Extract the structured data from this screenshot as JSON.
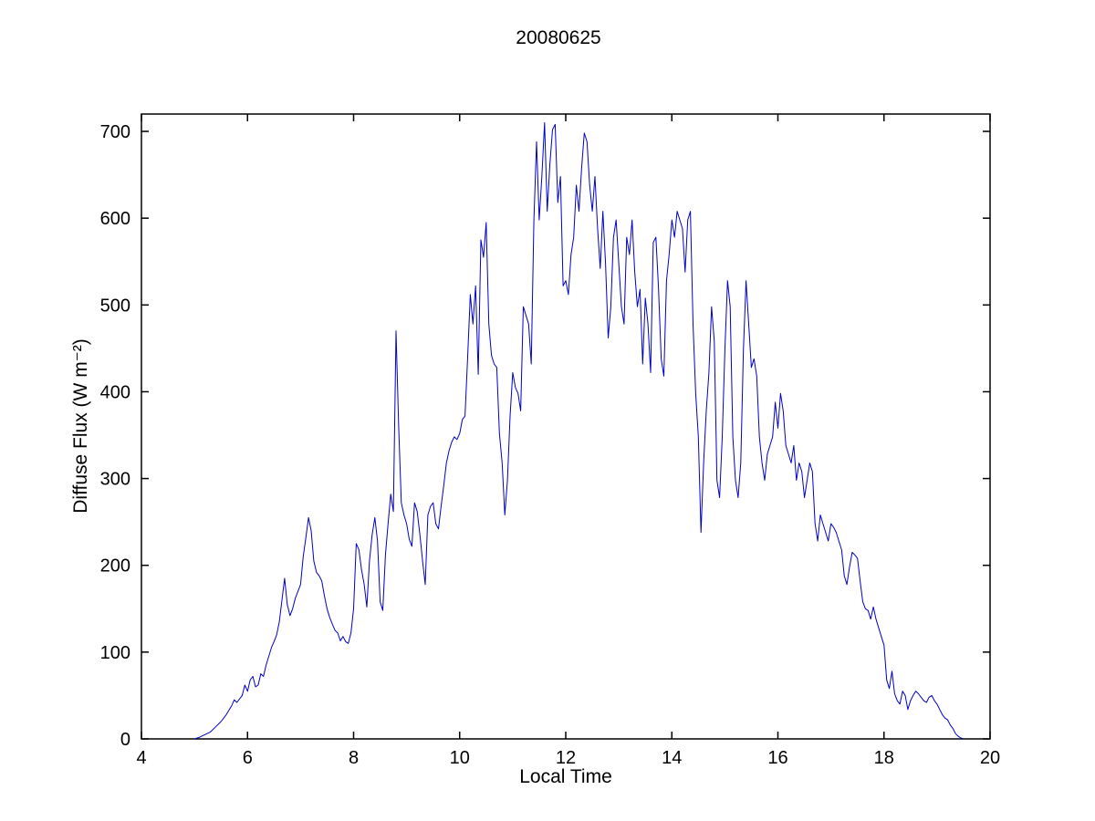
{
  "figure": {
    "background": "#ffffff"
  },
  "chart_data": {
    "type": "line",
    "title": "20080625",
    "xlabel": "Local Time",
    "ylabel": "Diffuse Flux (W m⁻²)",
    "xlim": [
      4,
      20
    ],
    "ylim": [
      0,
      720
    ],
    "xticks": [
      4,
      6,
      8,
      10,
      12,
      14,
      16,
      18,
      20
    ],
    "yticks": [
      0,
      100,
      200,
      300,
      400,
      500,
      600,
      700
    ],
    "grid": false,
    "legend": "none",
    "line_color": "#0000CC",
    "axis_color": "#000000",
    "points": [
      [
        5.0,
        0
      ],
      [
        5.1,
        2
      ],
      [
        5.2,
        5
      ],
      [
        5.3,
        8
      ],
      [
        5.4,
        14
      ],
      [
        5.5,
        20
      ],
      [
        5.6,
        28
      ],
      [
        5.7,
        38
      ],
      [
        5.75,
        45
      ],
      [
        5.8,
        42
      ],
      [
        5.9,
        50
      ],
      [
        5.95,
        62
      ],
      [
        6.0,
        55
      ],
      [
        6.05,
        68
      ],
      [
        6.1,
        72
      ],
      [
        6.15,
        60
      ],
      [
        6.2,
        62
      ],
      [
        6.25,
        75
      ],
      [
        6.3,
        72
      ],
      [
        6.35,
        85
      ],
      [
        6.4,
        95
      ],
      [
        6.45,
        105
      ],
      [
        6.5,
        112
      ],
      [
        6.55,
        120
      ],
      [
        6.6,
        135
      ],
      [
        6.65,
        160
      ],
      [
        6.7,
        185
      ],
      [
        6.75,
        155
      ],
      [
        6.8,
        142
      ],
      [
        6.85,
        150
      ],
      [
        6.9,
        162
      ],
      [
        6.95,
        170
      ],
      [
        7.0,
        178
      ],
      [
        7.05,
        210
      ],
      [
        7.1,
        232
      ],
      [
        7.15,
        255
      ],
      [
        7.2,
        240
      ],
      [
        7.25,
        205
      ],
      [
        7.3,
        192
      ],
      [
        7.35,
        188
      ],
      [
        7.4,
        182
      ],
      [
        7.45,
        165
      ],
      [
        7.5,
        150
      ],
      [
        7.55,
        140
      ],
      [
        7.6,
        132
      ],
      [
        7.65,
        125
      ],
      [
        7.7,
        122
      ],
      [
        7.75,
        113
      ],
      [
        7.8,
        118
      ],
      [
        7.85,
        112
      ],
      [
        7.9,
        110
      ],
      [
        7.95,
        122
      ],
      [
        8.0,
        150
      ],
      [
        8.05,
        225
      ],
      [
        8.1,
        218
      ],
      [
        8.15,
        195
      ],
      [
        8.2,
        178
      ],
      [
        8.25,
        152
      ],
      [
        8.3,
        205
      ],
      [
        8.35,
        235
      ],
      [
        8.4,
        255
      ],
      [
        8.45,
        228
      ],
      [
        8.5,
        158
      ],
      [
        8.55,
        148
      ],
      [
        8.6,
        212
      ],
      [
        8.65,
        248
      ],
      [
        8.7,
        282
      ],
      [
        8.75,
        262
      ],
      [
        8.8,
        470
      ],
      [
        8.85,
        360
      ],
      [
        8.9,
        272
      ],
      [
        8.95,
        258
      ],
      [
        9.0,
        248
      ],
      [
        9.05,
        230
      ],
      [
        9.1,
        222
      ],
      [
        9.15,
        272
      ],
      [
        9.2,
        262
      ],
      [
        9.25,
        235
      ],
      [
        9.3,
        205
      ],
      [
        9.35,
        178
      ],
      [
        9.4,
        258
      ],
      [
        9.45,
        268
      ],
      [
        9.5,
        272
      ],
      [
        9.55,
        248
      ],
      [
        9.6,
        242
      ],
      [
        9.65,
        268
      ],
      [
        9.7,
        292
      ],
      [
        9.75,
        318
      ],
      [
        9.8,
        332
      ],
      [
        9.85,
        342
      ],
      [
        9.9,
        348
      ],
      [
        9.95,
        345
      ],
      [
        10.0,
        352
      ],
      [
        10.05,
        368
      ],
      [
        10.1,
        372
      ],
      [
        10.15,
        440
      ],
      [
        10.2,
        512
      ],
      [
        10.25,
        478
      ],
      [
        10.3,
        522
      ],
      [
        10.35,
        420
      ],
      [
        10.4,
        575
      ],
      [
        10.45,
        555
      ],
      [
        10.5,
        595
      ],
      [
        10.55,
        478
      ],
      [
        10.6,
        442
      ],
      [
        10.65,
        432
      ],
      [
        10.7,
        428
      ],
      [
        10.75,
        352
      ],
      [
        10.8,
        318
      ],
      [
        10.85,
        258
      ],
      [
        10.9,
        298
      ],
      [
        10.95,
        372
      ],
      [
        11.0,
        422
      ],
      [
        11.05,
        405
      ],
      [
        11.1,
        398
      ],
      [
        11.15,
        378
      ],
      [
        11.2,
        498
      ],
      [
        11.25,
        488
      ],
      [
        11.3,
        478
      ],
      [
        11.35,
        432
      ],
      [
        11.4,
        598
      ],
      [
        11.45,
        688
      ],
      [
        11.5,
        598
      ],
      [
        11.55,
        648
      ],
      [
        11.6,
        710
      ],
      [
        11.65,
        608
      ],
      [
        11.7,
        662
      ],
      [
        11.75,
        702
      ],
      [
        11.8,
        708
      ],
      [
        11.85,
        618
      ],
      [
        11.9,
        648
      ],
      [
        11.95,
        522
      ],
      [
        12.0,
        528
      ],
      [
        12.05,
        512
      ],
      [
        12.1,
        558
      ],
      [
        12.15,
        578
      ],
      [
        12.2,
        638
      ],
      [
        12.25,
        608
      ],
      [
        12.3,
        658
      ],
      [
        12.35,
        698
      ],
      [
        12.4,
        688
      ],
      [
        12.45,
        638
      ],
      [
        12.5,
        608
      ],
      [
        12.55,
        648
      ],
      [
        12.6,
        588
      ],
      [
        12.65,
        542
      ],
      [
        12.7,
        608
      ],
      [
        12.75,
        548
      ],
      [
        12.8,
        462
      ],
      [
        12.85,
        498
      ],
      [
        12.9,
        578
      ],
      [
        12.95,
        598
      ],
      [
        13.0,
        548
      ],
      [
        13.05,
        498
      ],
      [
        13.1,
        478
      ],
      [
        13.15,
        578
      ],
      [
        13.2,
        558
      ],
      [
        13.25,
        598
      ],
      [
        13.3,
        538
      ],
      [
        13.35,
        498
      ],
      [
        13.4,
        518
      ],
      [
        13.45,
        432
      ],
      [
        13.5,
        508
      ],
      [
        13.55,
        478
      ],
      [
        13.6,
        422
      ],
      [
        13.65,
        572
      ],
      [
        13.7,
        578
      ],
      [
        13.75,
        518
      ],
      [
        13.8,
        438
      ],
      [
        13.85,
        418
      ],
      [
        13.9,
        528
      ],
      [
        13.95,
        558
      ],
      [
        14.0,
        598
      ],
      [
        14.05,
        578
      ],
      [
        14.1,
        608
      ],
      [
        14.15,
        598
      ],
      [
        14.2,
        588
      ],
      [
        14.25,
        538
      ],
      [
        14.3,
        598
      ],
      [
        14.35,
        608
      ],
      [
        14.4,
        478
      ],
      [
        14.45,
        398
      ],
      [
        14.5,
        348
      ],
      [
        14.55,
        238
      ],
      [
        14.6,
        318
      ],
      [
        14.65,
        378
      ],
      [
        14.7,
        422
      ],
      [
        14.75,
        498
      ],
      [
        14.8,
        458
      ],
      [
        14.85,
        298
      ],
      [
        14.9,
        278
      ],
      [
        14.95,
        348
      ],
      [
        15.0,
        448
      ],
      [
        15.05,
        528
      ],
      [
        15.1,
        498
      ],
      [
        15.15,
        348
      ],
      [
        15.2,
        298
      ],
      [
        15.25,
        278
      ],
      [
        15.3,
        318
      ],
      [
        15.35,
        448
      ],
      [
        15.4,
        528
      ],
      [
        15.45,
        478
      ],
      [
        15.5,
        428
      ],
      [
        15.55,
        438
      ],
      [
        15.6,
        418
      ],
      [
        15.65,
        348
      ],
      [
        15.7,
        318
      ],
      [
        15.75,
        298
      ],
      [
        15.8,
        328
      ],
      [
        15.85,
        338
      ],
      [
        15.9,
        348
      ],
      [
        15.95,
        388
      ],
      [
        16.0,
        358
      ],
      [
        16.05,
        398
      ],
      [
        16.1,
        378
      ],
      [
        16.15,
        338
      ],
      [
        16.2,
        328
      ],
      [
        16.25,
        318
      ],
      [
        16.3,
        338
      ],
      [
        16.35,
        298
      ],
      [
        16.4,
        318
      ],
      [
        16.45,
        308
      ],
      [
        16.5,
        278
      ],
      [
        16.55,
        298
      ],
      [
        16.6,
        318
      ],
      [
        16.65,
        308
      ],
      [
        16.7,
        248
      ],
      [
        16.75,
        228
      ],
      [
        16.8,
        258
      ],
      [
        16.85,
        248
      ],
      [
        16.9,
        238
      ],
      [
        16.95,
        228
      ],
      [
        17.0,
        248
      ],
      [
        17.05,
        244
      ],
      [
        17.1,
        238
      ],
      [
        17.15,
        228
      ],
      [
        17.2,
        218
      ],
      [
        17.25,
        188
      ],
      [
        17.3,
        178
      ],
      [
        17.35,
        198
      ],
      [
        17.4,
        215
      ],
      [
        17.45,
        212
      ],
      [
        17.5,
        208
      ],
      [
        17.55,
        182
      ],
      [
        17.6,
        158
      ],
      [
        17.65,
        150
      ],
      [
        17.7,
        148
      ],
      [
        17.75,
        138
      ],
      [
        17.8,
        152
      ],
      [
        17.85,
        138
      ],
      [
        17.9,
        128
      ],
      [
        17.95,
        118
      ],
      [
        18.0,
        108
      ],
      [
        18.05,
        68
      ],
      [
        18.1,
        58
      ],
      [
        18.15,
        78
      ],
      [
        18.2,
        52
      ],
      [
        18.25,
        44
      ],
      [
        18.3,
        40
      ],
      [
        18.35,
        55
      ],
      [
        18.4,
        50
      ],
      [
        18.45,
        34
      ],
      [
        18.5,
        44
      ],
      [
        18.55,
        50
      ],
      [
        18.6,
        55
      ],
      [
        18.65,
        52
      ],
      [
        18.7,
        48
      ],
      [
        18.75,
        44
      ],
      [
        18.8,
        42
      ],
      [
        18.85,
        48
      ],
      [
        18.9,
        50
      ],
      [
        18.95,
        44
      ],
      [
        19.0,
        40
      ],
      [
        19.05,
        34
      ],
      [
        19.1,
        28
      ],
      [
        19.15,
        24
      ],
      [
        19.2,
        22
      ],
      [
        19.25,
        16
      ],
      [
        19.3,
        12
      ],
      [
        19.35,
        6
      ],
      [
        19.4,
        3
      ],
      [
        19.45,
        1
      ],
      [
        19.5,
        0
      ]
    ]
  }
}
